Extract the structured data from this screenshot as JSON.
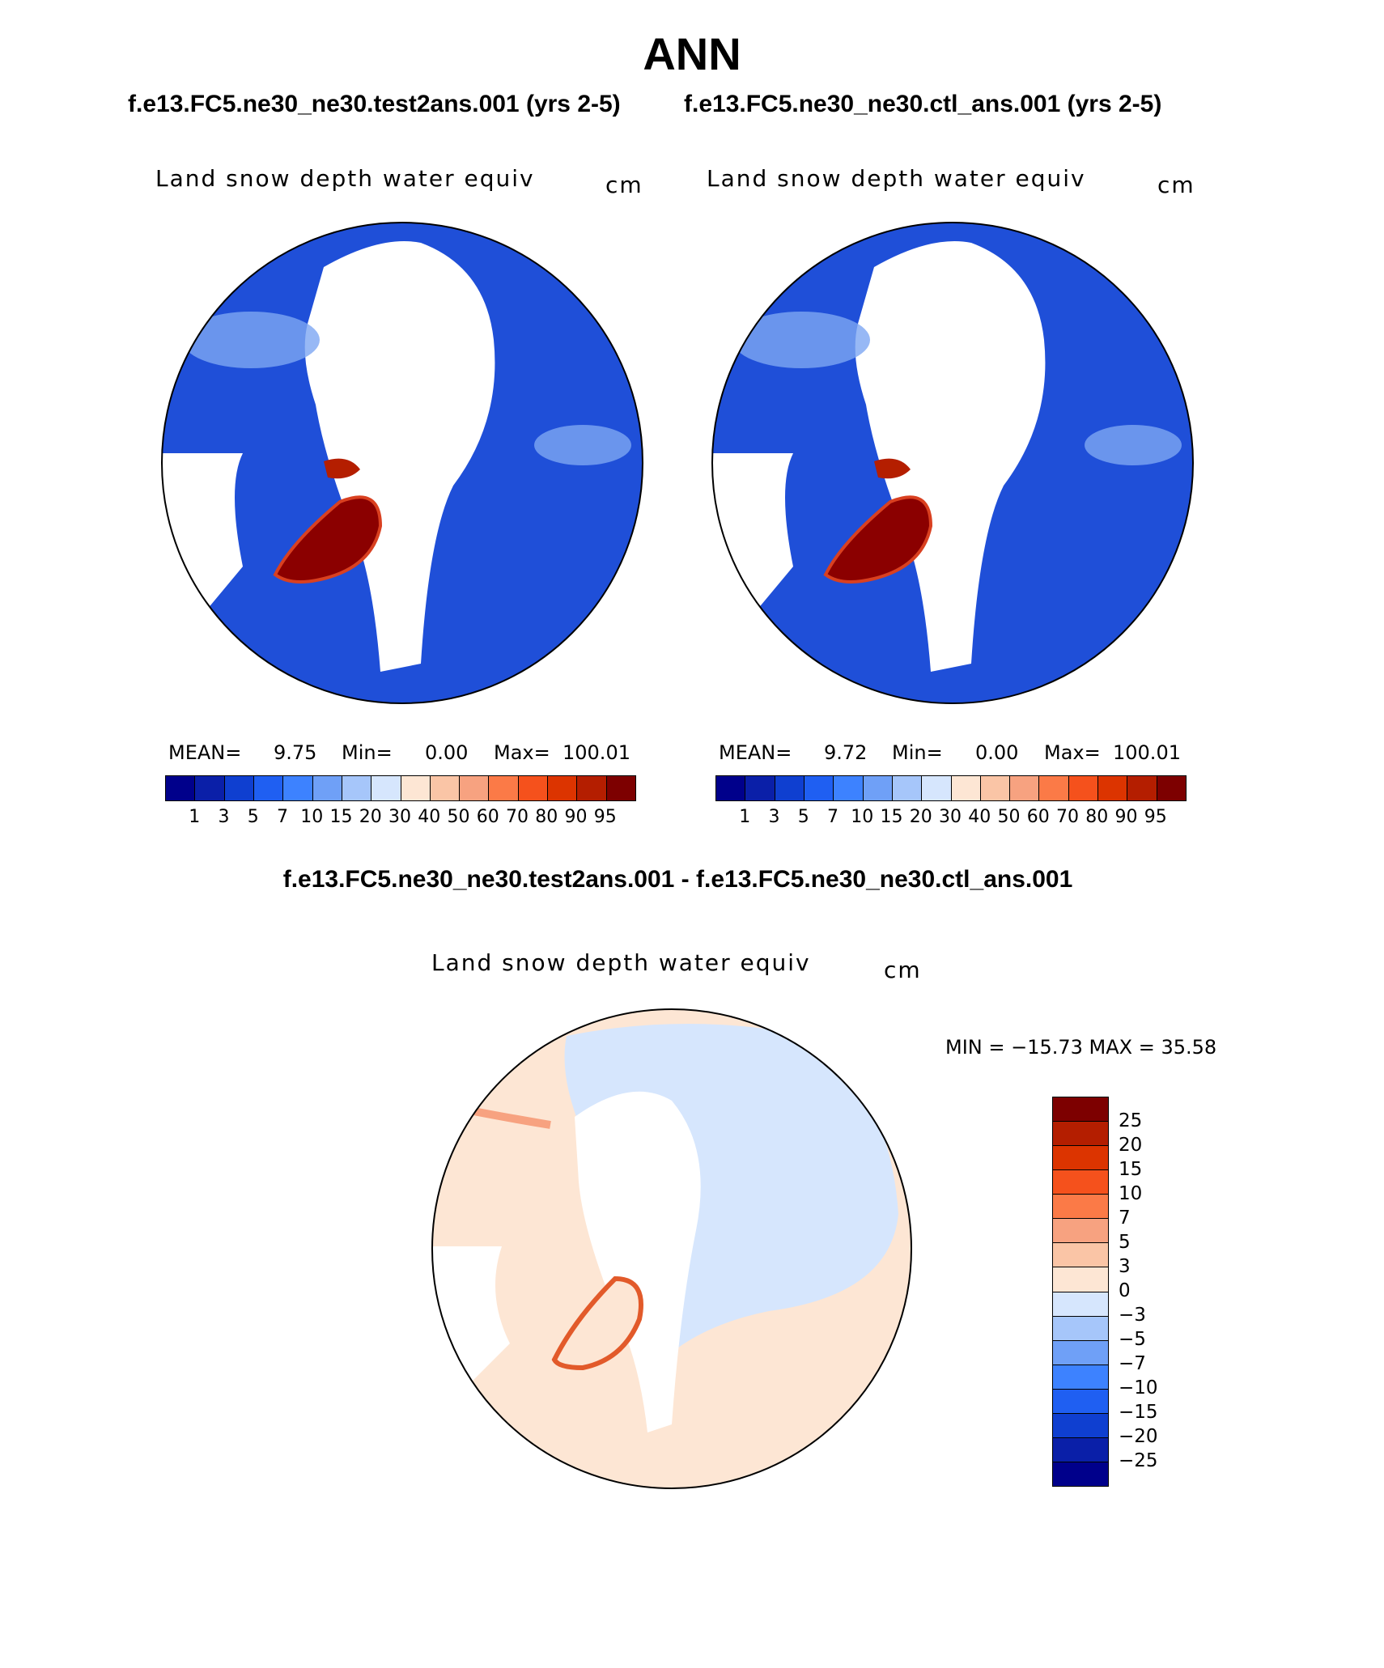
{
  "figure": {
    "title": "ANN",
    "case1_title": "f.e13.FC5.ne30_ne30.test2ans.001 (yrs 2-5)",
    "case2_title": "f.e13.FC5.ne30_ne30.ctl_ans.001 (yrs 2-5)",
    "diff_title": "f.e13.FC5.ne30_ne30.test2ans.001 - f.e13.FC5.ne30_ne30.ctl_ans.001"
  },
  "panels": [
    {
      "variable": "Land snow depth water equiv",
      "units": "cm",
      "mean_label": "MEAN=",
      "mean": "9.75",
      "min_label": "Min=",
      "min": "0.00",
      "max_label": "Max=",
      "max": "100.01"
    },
    {
      "variable": "Land snow depth water equiv",
      "units": "cm",
      "mean_label": "MEAN=",
      "mean": "9.72",
      "min_label": "Min=",
      "min": "0.00",
      "max_label": "Max=",
      "max": "100.01"
    }
  ],
  "diff_panel": {
    "variable": "Land snow depth water equiv",
    "units": "cm",
    "minmax": "MIN = −15.73 MAX =   35.58"
  },
  "colorbar_abs": {
    "colors": [
      "#00008b",
      "#0a1fa8",
      "#0f3fd0",
      "#1f5ff2",
      "#3d82ff",
      "#6fa0f7",
      "#a6c6fa",
      "#d6e6fd",
      "#fde6d4",
      "#fac5a6",
      "#f7a280",
      "#fb7a47",
      "#f5511c",
      "#dc3400",
      "#b41e00",
      "#7d0000"
    ],
    "labels": [
      "1",
      "3",
      "5",
      "7",
      "10",
      "15",
      "20",
      "30",
      "40",
      "50",
      "60",
      "70",
      "80",
      "90",
      "95"
    ]
  },
  "colorbar_diff": {
    "colors": [
      "#7d0000",
      "#b41e00",
      "#dc3400",
      "#f5511c",
      "#fb7a47",
      "#f7a280",
      "#fac5a6",
      "#fde6d4",
      "#d6e6fd",
      "#a6c6fa",
      "#6fa0f7",
      "#3d82ff",
      "#1f5ff2",
      "#0f3fd0",
      "#0a1fa8",
      "#00008b"
    ],
    "labels": [
      "25",
      "20",
      "15",
      "10",
      "7",
      "5",
      "3",
      "0",
      "−3",
      "−5",
      "−7",
      "−10",
      "−15",
      "−20",
      "−25"
    ]
  },
  "colors": {
    "ocean": "#ffffff",
    "land_low": "#1f4fd8",
    "land_mid": "#3d72e8",
    "land_light": "#9bbcf5",
    "greenland": "#8b0000",
    "greenland_edge": "#d94020",
    "diff_pos": "#fde6d4",
    "diff_neg": "#d6e6fd",
    "diff_strong": "#e25a2a"
  }
}
